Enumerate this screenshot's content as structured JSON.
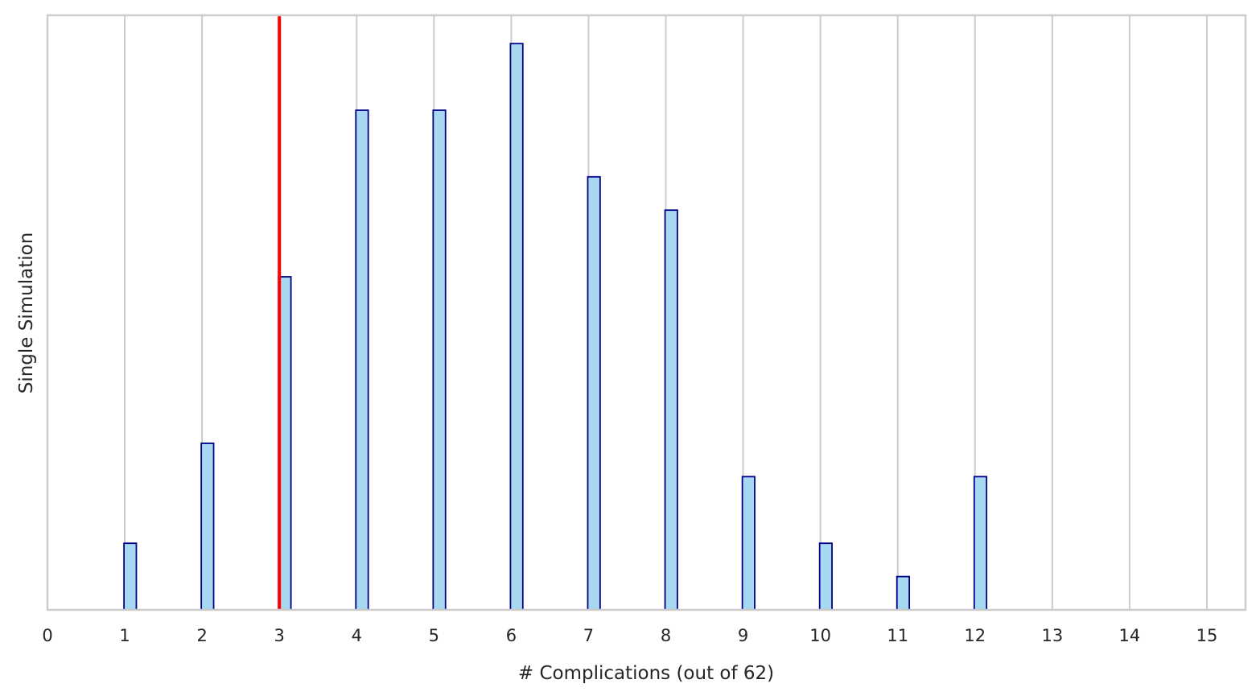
{
  "chart_data": {
    "type": "bar",
    "title": "",
    "xlabel": "# Complications (out of 62)",
    "ylabel": "Single Simulation",
    "x": [
      1,
      2,
      3,
      4,
      5,
      6,
      7,
      8,
      9,
      10,
      11,
      12
    ],
    "values": [
      2,
      5,
      10,
      15,
      15,
      17,
      13,
      12,
      4,
      2,
      1,
      4
    ],
    "xlim": [
      0,
      15.5
    ],
    "ylim": [
      0,
      17.85
    ],
    "xticks": [
      "0",
      "1",
      "2",
      "3",
      "4",
      "5",
      "6",
      "7",
      "8",
      "9",
      "10",
      "11",
      "12",
      "13",
      "14",
      "15"
    ],
    "yticks_visible": false,
    "grid": "vertical",
    "reference_line": {
      "x": 3,
      "color": "#ff0000"
    },
    "colors": {
      "bar_fill": "#a8d8f0",
      "bar_edge": "#00008b",
      "grid": "#cccccc",
      "frame": "#cccccc"
    }
  }
}
